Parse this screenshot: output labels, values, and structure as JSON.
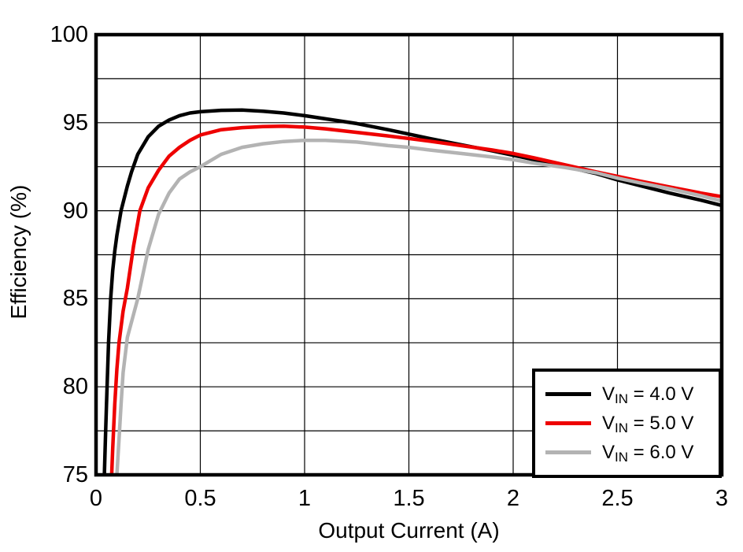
{
  "figure": {
    "background": "#ffffff",
    "text_color": "#000000",
    "grid_color": "#000000",
    "frame_color": "#000000"
  },
  "chart_data": {
    "type": "line",
    "title": "",
    "xlabel": "Output Current (A)",
    "ylabel": "Efficiency (%)",
    "xlim": [
      0,
      3
    ],
    "ylim": [
      75,
      100
    ],
    "x_ticks": [
      0,
      0.5,
      1,
      1.5,
      2,
      2.5,
      3
    ],
    "x_tick_labels": [
      "0",
      "0.5",
      "1",
      "1.5",
      "2",
      "2.5",
      "3"
    ],
    "y_ticks": [
      75,
      80,
      85,
      90,
      95,
      100
    ],
    "y_tick_labels": [
      "75",
      "80",
      "85",
      "90",
      "95",
      "100"
    ],
    "grid": true,
    "x_grid_step": 0.5,
    "y_grid_step": 2.5,
    "legend_position": "bottom-right",
    "series": [
      {
        "label_prefix": "V",
        "label_sub": "IN",
        "label_rest": " = 4.0 V",
        "color": "#000000",
        "points": [
          [
            0.04,
            75
          ],
          [
            0.045,
            77
          ],
          [
            0.05,
            79
          ],
          [
            0.06,
            82.5
          ],
          [
            0.07,
            85
          ],
          [
            0.08,
            86.6
          ],
          [
            0.09,
            87.7
          ],
          [
            0.1,
            88.6
          ],
          [
            0.12,
            90
          ],
          [
            0.15,
            91.4
          ],
          [
            0.17,
            92.2
          ],
          [
            0.2,
            93.2
          ],
          [
            0.25,
            94.2
          ],
          [
            0.3,
            94.8
          ],
          [
            0.35,
            95.15
          ],
          [
            0.4,
            95.4
          ],
          [
            0.45,
            95.55
          ],
          [
            0.5,
            95.62
          ],
          [
            0.6,
            95.7
          ],
          [
            0.7,
            95.72
          ],
          [
            0.8,
            95.65
          ],
          [
            0.9,
            95.55
          ],
          [
            1.0,
            95.4
          ],
          [
            1.1,
            95.22
          ],
          [
            1.25,
            94.95
          ],
          [
            1.4,
            94.6
          ],
          [
            1.5,
            94.35
          ],
          [
            1.6,
            94.1
          ],
          [
            1.75,
            93.75
          ],
          [
            1.9,
            93.4
          ],
          [
            2.0,
            93.15
          ],
          [
            2.1,
            92.9
          ],
          [
            2.25,
            92.5
          ],
          [
            2.4,
            92.1
          ],
          [
            2.5,
            91.75
          ],
          [
            2.6,
            91.45
          ],
          [
            2.75,
            91.0
          ],
          [
            2.9,
            90.6
          ],
          [
            3.0,
            90.3
          ]
        ]
      },
      {
        "label_prefix": "V",
        "label_sub": "IN",
        "label_rest": " = 5.0 V",
        "color": "#ee0000",
        "points": [
          [
            0.075,
            75
          ],
          [
            0.08,
            76.5
          ],
          [
            0.09,
            79
          ],
          [
            0.1,
            81
          ],
          [
            0.11,
            82.5
          ],
          [
            0.13,
            84.3
          ],
          [
            0.15,
            85.6
          ],
          [
            0.18,
            88
          ],
          [
            0.21,
            90
          ],
          [
            0.25,
            91.3
          ],
          [
            0.3,
            92.3
          ],
          [
            0.35,
            93.1
          ],
          [
            0.4,
            93.6
          ],
          [
            0.45,
            94.0
          ],
          [
            0.5,
            94.3
          ],
          [
            0.6,
            94.6
          ],
          [
            0.7,
            94.72
          ],
          [
            0.8,
            94.78
          ],
          [
            0.9,
            94.8
          ],
          [
            1.0,
            94.75
          ],
          [
            1.1,
            94.65
          ],
          [
            1.25,
            94.45
          ],
          [
            1.4,
            94.25
          ],
          [
            1.5,
            94.1
          ],
          [
            1.6,
            93.95
          ],
          [
            1.75,
            93.7
          ],
          [
            1.9,
            93.45
          ],
          [
            2.0,
            93.25
          ],
          [
            2.1,
            93.0
          ],
          [
            2.25,
            92.6
          ],
          [
            2.4,
            92.2
          ],
          [
            2.5,
            91.95
          ],
          [
            2.6,
            91.7
          ],
          [
            2.75,
            91.35
          ],
          [
            2.9,
            91.0
          ],
          [
            3.0,
            90.8
          ]
        ]
      },
      {
        "label_prefix": "V",
        "label_sub": "IN",
        "label_rest": " = 6.0 V",
        "color": "#b3b3b3",
        "points": [
          [
            0.1,
            75
          ],
          [
            0.11,
            77
          ],
          [
            0.12,
            79
          ],
          [
            0.13,
            80.8
          ],
          [
            0.15,
            82.8
          ],
          [
            0.2,
            85
          ],
          [
            0.25,
            87.8
          ],
          [
            0.3,
            89.8
          ],
          [
            0.35,
            91.0
          ],
          [
            0.4,
            91.8
          ],
          [
            0.45,
            92.2
          ],
          [
            0.5,
            92.5
          ],
          [
            0.6,
            93.2
          ],
          [
            0.7,
            93.6
          ],
          [
            0.8,
            93.8
          ],
          [
            0.9,
            93.93
          ],
          [
            1.0,
            94.0
          ],
          [
            1.1,
            94.0
          ],
          [
            1.25,
            93.9
          ],
          [
            1.4,
            93.7
          ],
          [
            1.5,
            93.6
          ],
          [
            1.6,
            93.45
          ],
          [
            1.75,
            93.25
          ],
          [
            1.9,
            93.05
          ],
          [
            2.0,
            92.9
          ],
          [
            2.1,
            92.7
          ],
          [
            2.25,
            92.45
          ],
          [
            2.4,
            92.15
          ],
          [
            2.5,
            91.85
          ],
          [
            2.6,
            91.6
          ],
          [
            2.75,
            91.25
          ],
          [
            2.9,
            90.85
          ],
          [
            3.0,
            90.55
          ]
        ]
      }
    ]
  }
}
